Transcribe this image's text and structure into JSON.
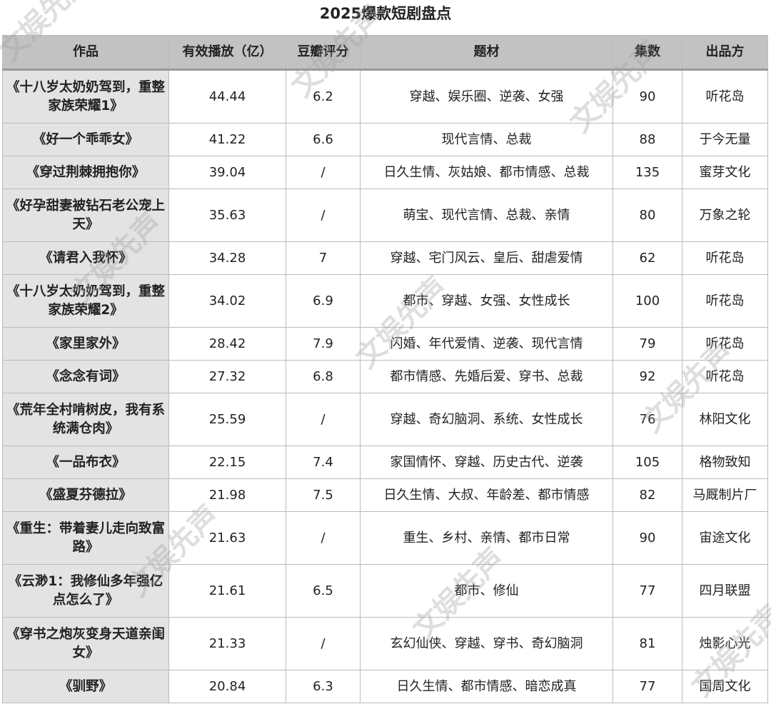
{
  "title": "2025爆款短剧盘点",
  "headers": [
    "作品",
    "有效播放（亿）",
    "豆瓣评分",
    "题材",
    "集数",
    "出品方"
  ],
  "rows": [
    {
      "work": "《十八岁太奶奶驾到，重整家族荣耀1》",
      "plays": "44.44",
      "rating": "6.2",
      "genre": "穿越、娱乐圈、逆袭、女强",
      "episodes": "90",
      "producer": "听花岛"
    },
    {
      "work": "《好一个乖乖女》",
      "plays": "41.22",
      "rating": "6.6",
      "genre": "现代言情、总裁",
      "episodes": "88",
      "producer": "于今无量"
    },
    {
      "work": "《穿过荆棘拥抱你》",
      "plays": "39.04",
      "rating": "/",
      "genre": "日久生情、灰姑娘、都市情感、总裁",
      "episodes": "135",
      "producer": "蜜芽文化"
    },
    {
      "work": "《好孕甜妻被钻石老公宠上天》",
      "plays": "35.63",
      "rating": "/",
      "genre": "萌宝、现代言情、总裁、亲情",
      "episodes": "80",
      "producer": "万象之轮"
    },
    {
      "work": "《请君入我怀》",
      "plays": "34.28",
      "rating": "7",
      "genre": "穿越、宅门风云、皇后、甜虐爱情",
      "episodes": "62",
      "producer": "听花岛"
    },
    {
      "work": "《十八岁太奶奶驾到，重整家族荣耀2》",
      "plays": "34.02",
      "rating": "6.9",
      "genre": "都市、穿越、女强、女性成长",
      "episodes": "100",
      "producer": "听花岛"
    },
    {
      "work": "《家里家外》",
      "plays": "28.42",
      "rating": "7.9",
      "genre": "闪婚、年代爱情、逆袭、现代言情",
      "episodes": "79",
      "producer": "听花岛"
    },
    {
      "work": "《念念有词》",
      "plays": "27.32",
      "rating": "6.8",
      "genre": "都市情感、先婚后爱、穿书、总裁",
      "episodes": "92",
      "producer": "听花岛"
    },
    {
      "work": "《荒年全村啃树皮，我有系统满仓肉》",
      "plays": "25.59",
      "rating": "/",
      "genre": "穿越、奇幻脑洞、系统、女性成长",
      "episodes": "76",
      "producer": "林阳文化"
    },
    {
      "work": "《一品布衣》",
      "plays": "22.15",
      "rating": "7.4",
      "genre": "家国情怀、穿越、历史古代、逆袭",
      "episodes": "105",
      "producer": "格物致知"
    },
    {
      "work": "《盛夏芬德拉》",
      "plays": "21.98",
      "rating": "7.5",
      "genre": "日久生情、大叔、年龄差、都市情感",
      "episodes": "82",
      "producer": "马厩制片厂"
    },
    {
      "work": "《重生：带着妻儿走向致富路》",
      "plays": "21.63",
      "rating": "/",
      "genre": "重生、乡村、亲情、都市日常",
      "episodes": "90",
      "producer": "宙途文化"
    },
    {
      "work": "《云渺1：我修仙多年强亿点怎么了》",
      "plays": "21.61",
      "rating": "6.5",
      "genre": "都市、修仙",
      "episodes": "77",
      "producer": "四月联盟"
    },
    {
      "work": "《穿书之炮灰变身天道亲闺女》",
      "plays": "21.33",
      "rating": "/",
      "genre": "玄幻仙侠、穿越、穿书、奇幻脑洞",
      "episodes": "81",
      "producer": "烛影心光"
    },
    {
      "work": "《驯野》",
      "plays": "20.84",
      "rating": "6.3",
      "genre": "日久生情、都市情感、暗恋成真",
      "episodes": "77",
      "producer": "国周文化"
    }
  ],
  "watermark": "文娱先声"
}
